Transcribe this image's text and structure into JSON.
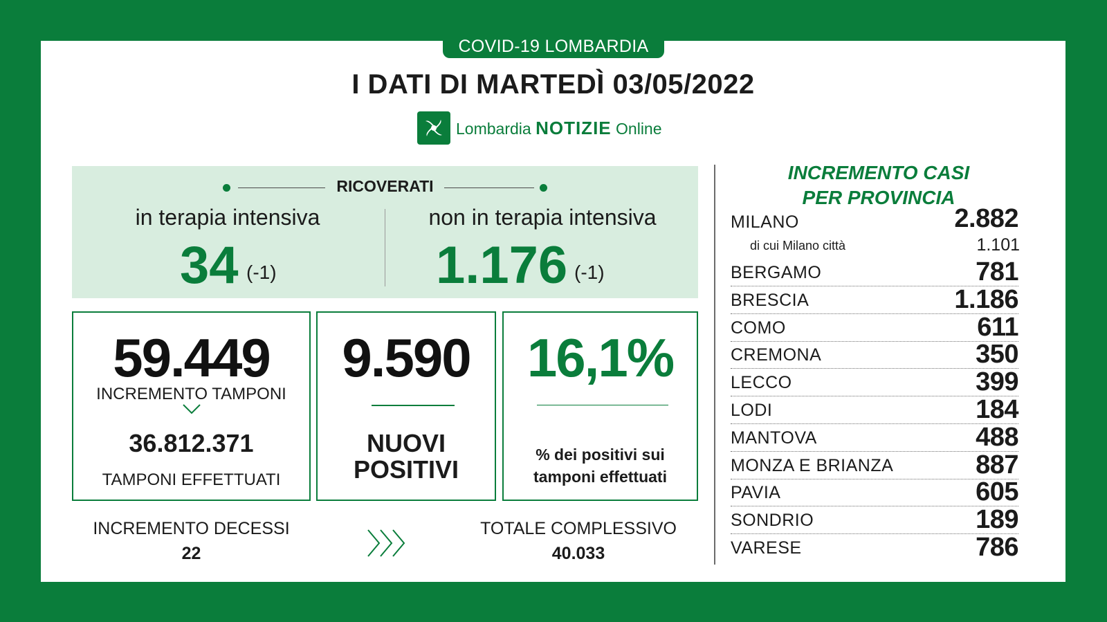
{
  "header": {
    "tag": "COVID-19 LOMBARDIA",
    "title": "I DATI DI MARTEDÌ 03/05/2022",
    "logo_prefix": "Lombardia ",
    "logo_bold": "NOTIZIE",
    "logo_suffix": " Online"
  },
  "ricoverati": {
    "heading": "RICOVERATI",
    "intensiva_label": "in terapia intensiva",
    "intensiva_value": "34",
    "intensiva_delta": "(-1)",
    "non_intensiva_label": "non in terapia intensiva",
    "non_intensiva_value": "1.176",
    "non_intensiva_delta": "(-1)"
  },
  "tamponi": {
    "increment_value": "59.449",
    "increment_label": "INCREMENTO TAMPONI",
    "total_value": "36.812.371",
    "total_label": "TAMPONI EFFETTUATI"
  },
  "positivi": {
    "value": "9.590",
    "label_line1": "NUOVI",
    "label_line2": "POSITIVI"
  },
  "percentuale": {
    "value": "16,1%",
    "label_line1": "% dei positivi sui",
    "label_line2": "tamponi effettuati"
  },
  "decessi": {
    "label": "INCREMENTO DECESSI",
    "value": "22",
    "total_label": "TOTALE COMPLESSIVO",
    "total_value": "40.033"
  },
  "province": {
    "title_line1": "INCREMENTO CASI",
    "title_line2": "PER PROVINCIA",
    "milano_citta_label": "di cui Milano città",
    "milano_citta_value": "1.101",
    "rows": [
      {
        "name": "MILANO",
        "value": "2.882"
      },
      {
        "name": "BERGAMO",
        "value": "781"
      },
      {
        "name": "BRESCIA",
        "value": "1.186"
      },
      {
        "name": "COMO",
        "value": "611"
      },
      {
        "name": "CREMONA",
        "value": "350"
      },
      {
        "name": "LECCO",
        "value": "399"
      },
      {
        "name": "LODI",
        "value": "184"
      },
      {
        "name": "MANTOVA",
        "value": "488"
      },
      {
        "name": "MONZA E BRIANZA",
        "value": "887"
      },
      {
        "name": "PAVIA",
        "value": "605"
      },
      {
        "name": "SONDRIO",
        "value": "189"
      },
      {
        "name": "VARESE",
        "value": "786"
      }
    ]
  },
  "colors": {
    "brand_green": "#0a7d3b",
    "light_green": "#d8eddf"
  }
}
